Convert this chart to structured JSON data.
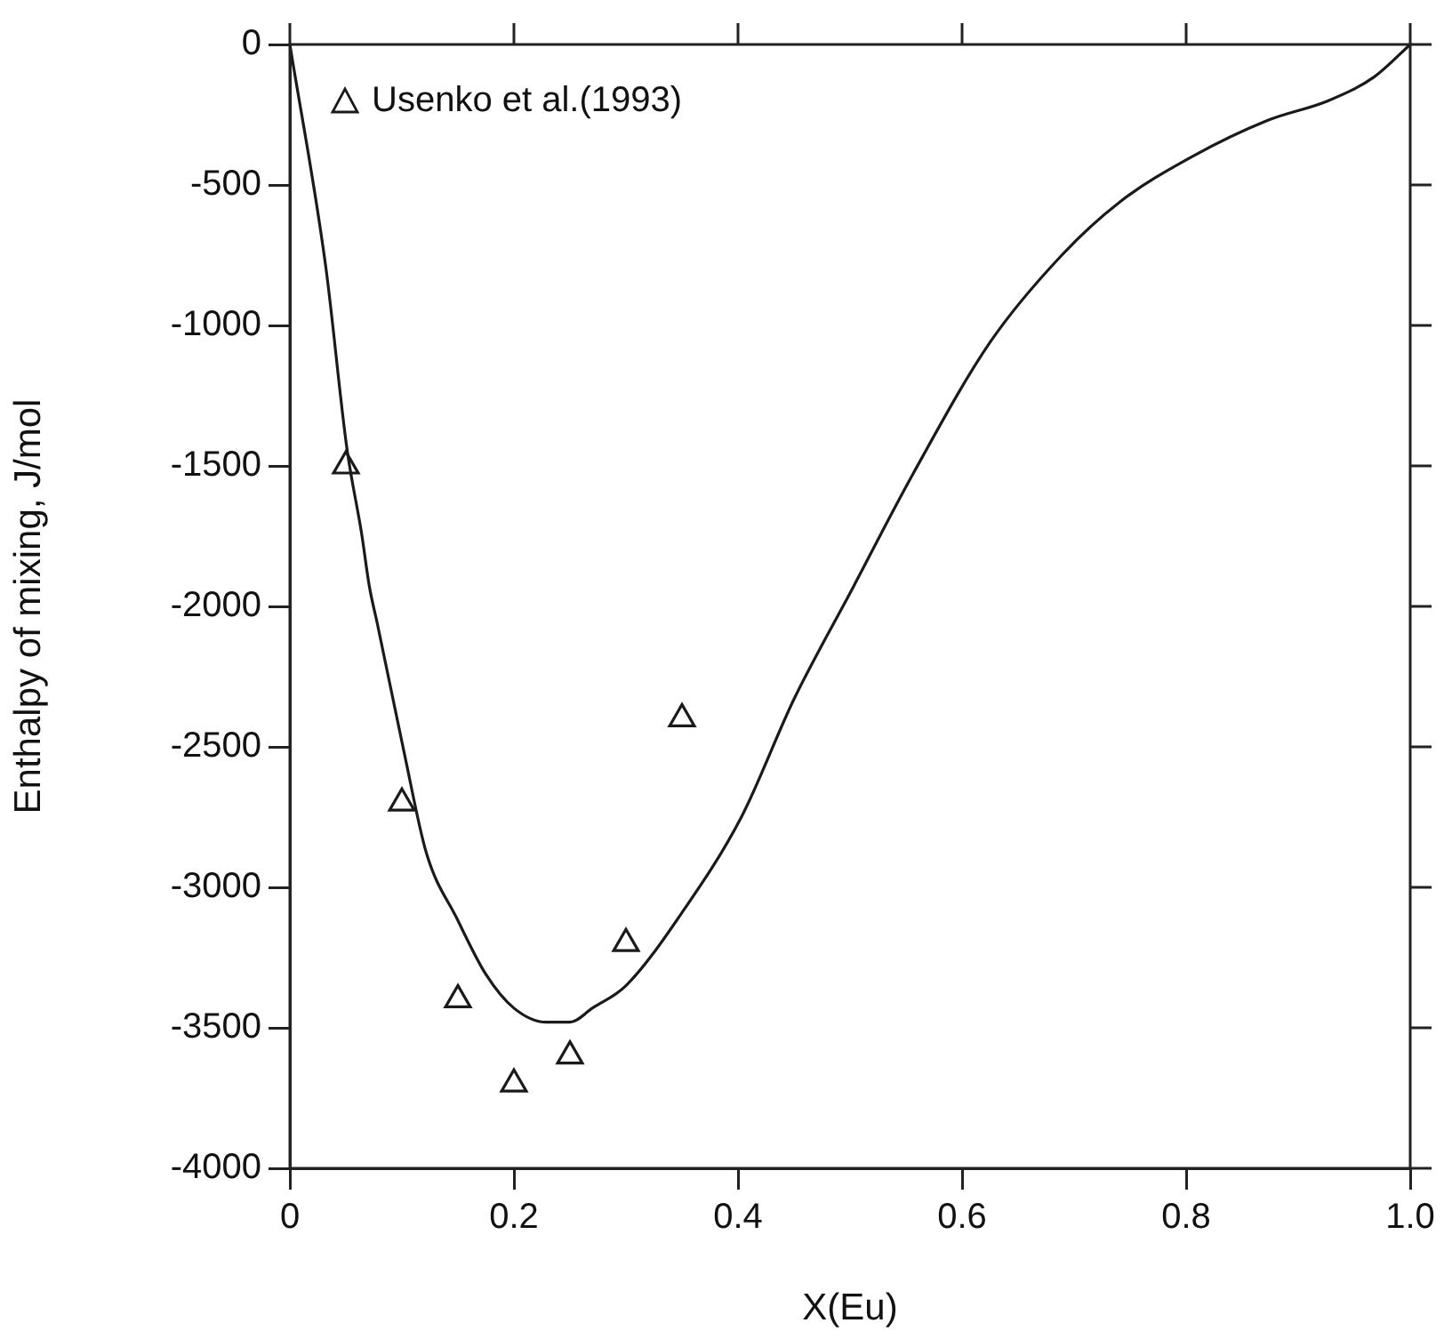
{
  "chart_data": {
    "type": "line",
    "xlabel": "X(Eu)",
    "ylabel": "Enthalpy of mixing, J/mol",
    "xlim": [
      0,
      1
    ],
    "xticks": [
      0,
      0.2,
      0.4,
      0.6,
      0.8,
      {
        "value": 1,
        "label": "1.0"
      }
    ],
    "ylim": [
      -4000,
      0
    ],
    "yticks": [
      -4000,
      -3500,
      -3000,
      -2500,
      -2000,
      -1500,
      -1000,
      -500,
      0
    ],
    "grid": false,
    "legend": "top left",
    "series": [
      {
        "color": "#1a1a1a",
        "marker": "none",
        "line_style": "solid",
        "x": [
          0,
          0.032,
          0.051,
          0.064,
          0.071,
          0.078,
          0.102,
          0.122,
          0.149,
          0.175,
          0.2,
          0.229,
          0.25,
          0.27,
          0.3,
          0.35,
          0.403,
          0.45,
          0.503,
          0.556,
          0.625,
          0.689,
          0.741,
          0.805,
          0.873,
          0.927,
          0.968,
          1
        ],
        "values": [
          0,
          -790,
          -1440,
          -1740,
          -1930,
          -2060,
          -2520,
          -2880,
          -3110,
          -3310,
          -3430,
          -3480,
          -3480,
          -3430,
          -3350,
          -3090,
          -2750,
          -2330,
          -1930,
          -1530,
          -1060,
          -750,
          -560,
          -400,
          -270,
          -200,
          -115,
          0
        ]
      },
      {
        "type": "scatter",
        "name": "Usenko et al.(1993)",
        "color": "#1a1a1a",
        "marker": "triangle",
        "x": [
          0.05,
          0.1,
          0.15,
          0.2,
          0.25,
          0.3,
          0.35
        ],
        "values": [
          -1500,
          -2700,
          -3400,
          -3700,
          -3600,
          -3200,
          -2400
        ]
      }
    ]
  }
}
